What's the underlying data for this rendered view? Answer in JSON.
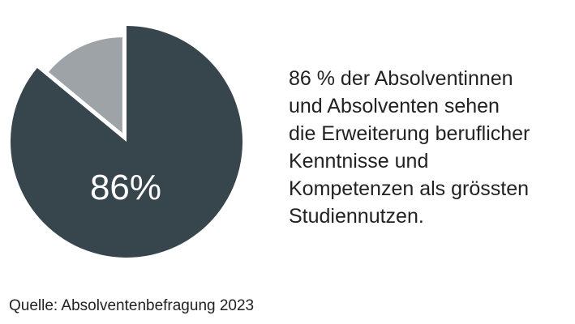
{
  "chart_data": {
    "type": "pie",
    "slices": [
      {
        "value": 86,
        "color": "#37464d"
      },
      {
        "value": 14,
        "color": "#9ea3a8"
      }
    ],
    "center_label": "86%"
  },
  "description": "86 % der Absolventinnen\nund Absolventen sehen\ndie Erweiterung beruflicher\nKenntnisse und\nKompetenzen als grössten\nStudiennutzen.",
  "source": "Quelle: Absolventenbefragung 2023"
}
